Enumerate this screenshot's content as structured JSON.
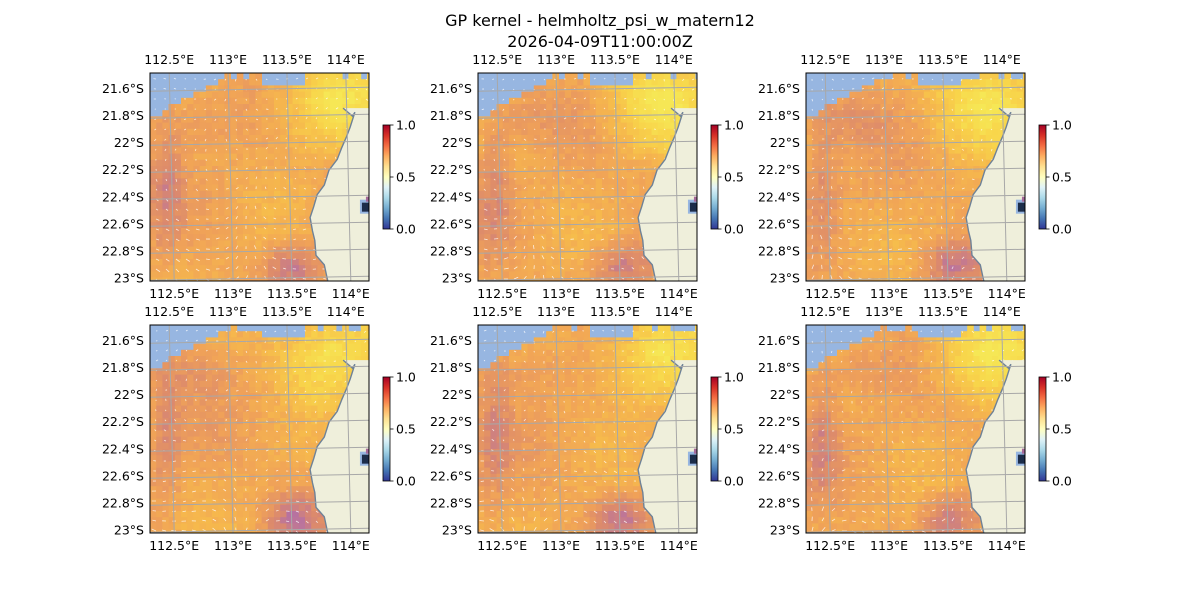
{
  "figure": {
    "title_line1": "GP kernel - helmholtz_psi_w_matern12",
    "title_line2": "2026-04-09T11:00:00Z"
  },
  "map": {
    "lon_range": [
      112.32,
      114.18
    ],
    "lat_range": [
      -23.02,
      -21.48
    ],
    "lon_ticks": [
      112.5,
      113.0,
      113.5,
      114.0
    ],
    "lon_tick_labels": [
      "112.5°E",
      "113°E",
      "113.5°E",
      "114°E"
    ],
    "lat_ticks": [
      -21.6,
      -21.8,
      -22.0,
      -22.2,
      -22.4,
      -22.6,
      -22.8,
      -23.0
    ],
    "lat_tick_labels": [
      "21.6°S",
      "21.8°S",
      "22°S",
      "22.2°S",
      "22.4°S",
      "22.6°S",
      "22.8°S",
      "23°S"
    ],
    "gridlines": true,
    "colors": {
      "ocean": "#97b6e1",
      "land": "#efefdb",
      "coastline": "#6e8298",
      "gridline": "#a8a8a8",
      "quiver": "#ffffff"
    },
    "colormap": "RdYlBu_r",
    "color_stops": [
      "#313695",
      "#4575b4",
      "#74add1",
      "#abd9e9",
      "#e0f3f8",
      "#ffffbf",
      "#fee090",
      "#fdae61",
      "#f46d43",
      "#d73027",
      "#a50026"
    ],
    "field_colors": [
      "#7a64a6",
      "#b872a0",
      "#dc8a6c",
      "#f0a258",
      "#f6b94c",
      "#f8d44a",
      "#f6e755"
    ],
    "colorbar": {
      "ticks": [
        0.0,
        0.5,
        1.0
      ],
      "tick_labels": [
        "0.0",
        "0.5",
        "1.0"
      ]
    }
  },
  "panels": [
    {
      "id": "panel-1",
      "row": 1,
      "col": 1
    },
    {
      "id": "panel-2",
      "row": 1,
      "col": 2
    },
    {
      "id": "panel-3",
      "row": 1,
      "col": 3
    },
    {
      "id": "panel-4",
      "row": 2,
      "col": 1
    },
    {
      "id": "panel-5",
      "row": 2,
      "col": 2
    },
    {
      "id": "panel-6",
      "row": 2,
      "col": 3
    }
  ]
}
